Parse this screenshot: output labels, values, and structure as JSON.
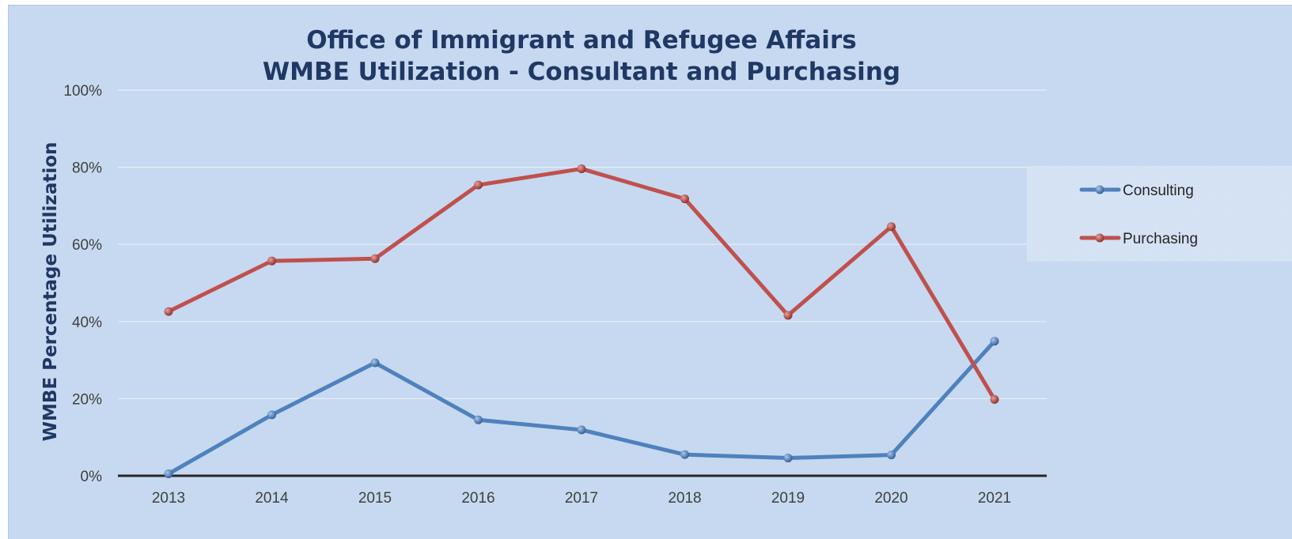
{
  "chart_data": {
    "type": "line",
    "title_lines": [
      "Office of Immigrant and Refugee Affairs",
      "WMBE Utilization - Consultant and Purchasing"
    ],
    "xlabel": "",
    "ylabel": "WMBE Percentage Utilization",
    "categories": [
      "2013",
      "2014",
      "2015",
      "2016",
      "2017",
      "2018",
      "2019",
      "2020",
      "2021"
    ],
    "ylim": [
      0,
      100
    ],
    "yticks": [
      "0%",
      "20%",
      "40%",
      "60%",
      "80%",
      "100%"
    ],
    "grid": true,
    "legend_position": "right",
    "series": [
      {
        "name": "Consulting",
        "color": "#4f81bd",
        "values": [
          0.5,
          15.8,
          29.3,
          14.5,
          11.9,
          5.5,
          4.6,
          5.4,
          34.9
        ]
      },
      {
        "name": "Purchasing",
        "color": "#c0504d",
        "values": [
          42.6,
          55.7,
          56.3,
          75.4,
          79.6,
          71.8,
          41.6,
          64.6,
          19.8
        ]
      }
    ]
  }
}
